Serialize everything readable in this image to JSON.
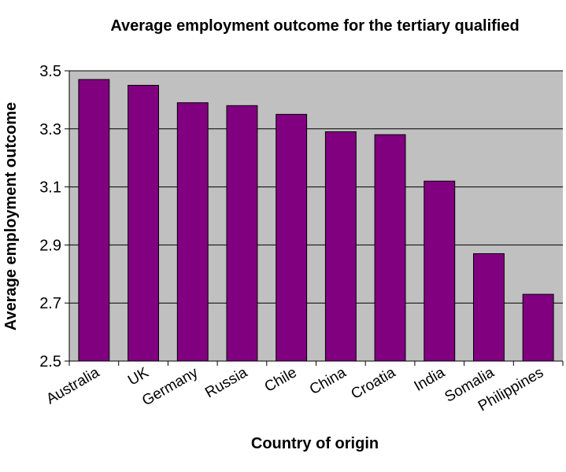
{
  "chart_data": {
    "type": "bar",
    "title": "Average employment outcome for the tertiary qualified",
    "x_label": "Country of origin",
    "y_label": "Average employment outcome",
    "categories": [
      "Australia",
      "UK",
      "Germany",
      "Russia",
      "Chile",
      "China",
      "Croatia",
      "India",
      "Somalia",
      "Philippines"
    ],
    "values": [
      3.47,
      3.45,
      3.39,
      3.38,
      3.35,
      3.29,
      3.28,
      3.12,
      2.87,
      2.73
    ],
    "color": "#800080",
    "ylim": [
      2.5,
      3.5
    ],
    "yticks": [
      2.5,
      2.7,
      2.9,
      3.1,
      3.3,
      3.5
    ],
    "grid": true
  }
}
